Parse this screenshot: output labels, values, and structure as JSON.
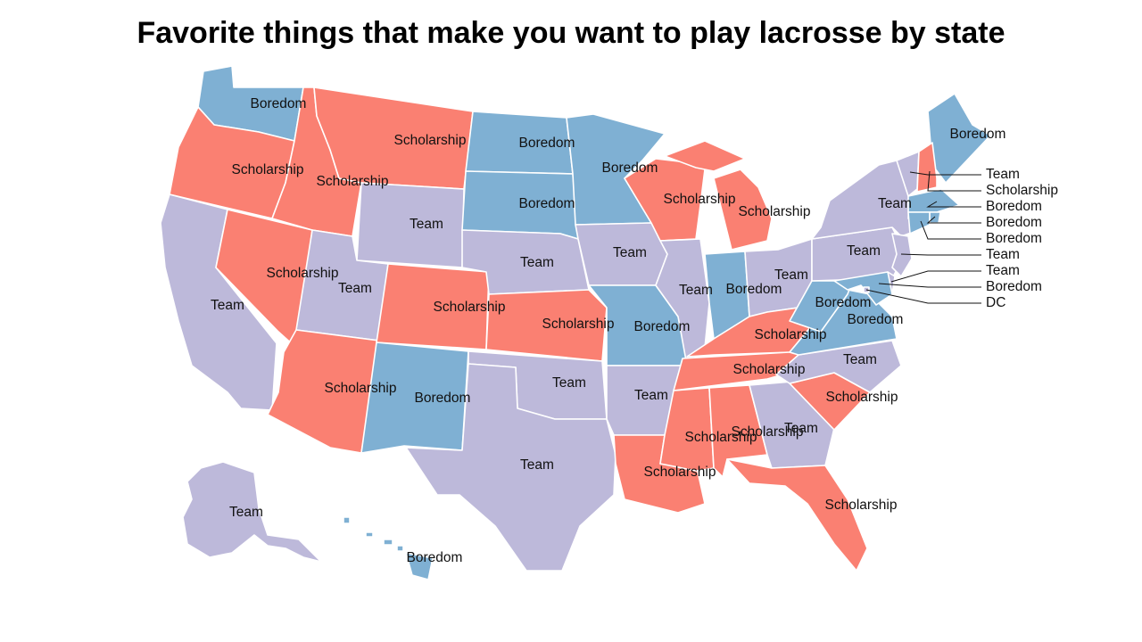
{
  "title": "Favorite things that make you want to play lacrosse by state",
  "colors": {
    "Team": "#bdb9da",
    "Scholarship": "#fa8072",
    "Boredom": "#7fb0d3",
    "DC": "#bdb9da"
  },
  "states": [
    {
      "state": "Washington",
      "value": "Boredom"
    },
    {
      "state": "Oregon",
      "value": "Scholarship"
    },
    {
      "state": "California",
      "value": "Team"
    },
    {
      "state": "Nevada",
      "value": "Scholarship"
    },
    {
      "state": "Idaho",
      "value": "Scholarship"
    },
    {
      "state": "Montana",
      "value": "Scholarship"
    },
    {
      "state": "Wyoming",
      "value": "Team"
    },
    {
      "state": "Utah",
      "value": "Team"
    },
    {
      "state": "Arizona",
      "value": "Scholarship"
    },
    {
      "state": "Colorado",
      "value": "Scholarship"
    },
    {
      "state": "New Mexico",
      "value": "Boredom"
    },
    {
      "state": "North Dakota",
      "value": "Boredom"
    },
    {
      "state": "South Dakota",
      "value": "Boredom"
    },
    {
      "state": "Nebraska",
      "value": "Team"
    },
    {
      "state": "Kansas",
      "value": "Scholarship"
    },
    {
      "state": "Oklahoma",
      "value": "Team"
    },
    {
      "state": "Texas",
      "value": "Team"
    },
    {
      "state": "Minnesota",
      "value": "Boredom"
    },
    {
      "state": "Iowa",
      "value": "Team"
    },
    {
      "state": "Missouri",
      "value": "Boredom"
    },
    {
      "state": "Arkansas",
      "value": "Team"
    },
    {
      "state": "Louisiana",
      "value": "Scholarship"
    },
    {
      "state": "Wisconsin",
      "value": "Scholarship"
    },
    {
      "state": "Illinois",
      "value": "Team"
    },
    {
      "state": "Michigan",
      "value": "Scholarship"
    },
    {
      "state": "Indiana",
      "value": "Boredom"
    },
    {
      "state": "Ohio",
      "value": "Team"
    },
    {
      "state": "Kentucky",
      "value": "Scholarship"
    },
    {
      "state": "Tennessee",
      "value": "Scholarship"
    },
    {
      "state": "Mississippi",
      "value": "Scholarship"
    },
    {
      "state": "Alabama",
      "value": "Scholarship"
    },
    {
      "state": "Georgia",
      "value": "Team"
    },
    {
      "state": "Florida",
      "value": "Scholarship"
    },
    {
      "state": "South Carolina",
      "value": "Scholarship"
    },
    {
      "state": "North Carolina",
      "value": "Team"
    },
    {
      "state": "Virginia",
      "value": "Boredom"
    },
    {
      "state": "West Virginia",
      "value": "Boredom"
    },
    {
      "state": "Pennsylvania",
      "value": "Team"
    },
    {
      "state": "New York",
      "value": "Team"
    },
    {
      "state": "Maine",
      "value": "Boredom"
    },
    {
      "state": "Vermont",
      "value": "Team"
    },
    {
      "state": "New Hampshire",
      "value": "Scholarship"
    },
    {
      "state": "Massachusetts",
      "value": "Boredom"
    },
    {
      "state": "Rhode Island",
      "value": "Boredom"
    },
    {
      "state": "Connecticut",
      "value": "Boredom"
    },
    {
      "state": "New Jersey",
      "value": "Team"
    },
    {
      "state": "Delaware",
      "value": "Team"
    },
    {
      "state": "Maryland",
      "value": "Boredom"
    },
    {
      "state": "DC",
      "value": "DC"
    },
    {
      "state": "Alaska",
      "value": "Team"
    },
    {
      "state": "Hawaii",
      "value": "Boredom"
    }
  ],
  "callouts": [
    "Team",
    "Scholarship",
    "Boredom",
    "Boredom",
    "Boredom",
    "Team",
    "Team",
    "Boredom",
    "DC"
  ]
}
